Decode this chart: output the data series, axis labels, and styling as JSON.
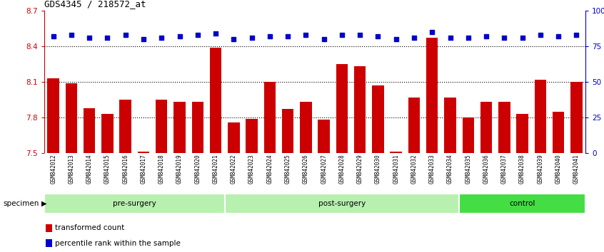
{
  "title": "GDS4345 / 218572_at",
  "samples": [
    "GSM842012",
    "GSM842013",
    "GSM842014",
    "GSM842015",
    "GSM842016",
    "GSM842017",
    "GSM842018",
    "GSM842019",
    "GSM842020",
    "GSM842021",
    "GSM842022",
    "GSM842023",
    "GSM842024",
    "GSM842025",
    "GSM842026",
    "GSM842027",
    "GSM842028",
    "GSM842029",
    "GSM842030",
    "GSM842031",
    "GSM842032",
    "GSM842033",
    "GSM842034",
    "GSM842035",
    "GSM842036",
    "GSM842037",
    "GSM842038",
    "GSM842039",
    "GSM842040",
    "GSM842041"
  ],
  "bar_values": [
    8.13,
    8.09,
    7.88,
    7.83,
    7.95,
    7.51,
    7.95,
    7.93,
    7.93,
    8.39,
    7.76,
    7.79,
    8.1,
    7.87,
    7.93,
    7.78,
    8.25,
    8.23,
    8.07,
    7.51,
    7.97,
    8.47,
    7.97,
    7.8,
    7.93,
    7.93,
    7.83,
    8.12,
    7.85,
    8.1
  ],
  "percentile_values": [
    82,
    83,
    81,
    81,
    83,
    80,
    81,
    82,
    83,
    84,
    80,
    81,
    82,
    82,
    83,
    80,
    83,
    83,
    82,
    80,
    81,
    85,
    81,
    81,
    82,
    81,
    81,
    83,
    82,
    83
  ],
  "bar_color": "#cc0000",
  "dot_color": "#0000cc",
  "bar_bottom": 7.5,
  "left_ylim": [
    7.5,
    8.7
  ],
  "right_ylim": [
    0,
    100
  ],
  "left_yticks": [
    7.5,
    7.8,
    8.1,
    8.4,
    8.7
  ],
  "right_yticks": [
    0,
    25,
    50,
    75,
    100
  ],
  "right_yticklabels": [
    "0",
    "25",
    "50",
    "75",
    "100%"
  ],
  "grid_lines": [
    7.8,
    8.1,
    8.4
  ],
  "groups": [
    {
      "label": "pre-surgery",
      "start": 0,
      "end": 9,
      "color": "#b8f0b0"
    },
    {
      "label": "post-surgery",
      "start": 10,
      "end": 22,
      "color": "#b8f0b0"
    },
    {
      "label": "control",
      "start": 23,
      "end": 29,
      "color": "#44dd44"
    }
  ],
  "xtick_bg": "#c8c8c8",
  "specimen_text": "specimen",
  "legend_items": [
    {
      "color": "#cc0000",
      "label": "transformed count"
    },
    {
      "color": "#0000cc",
      "label": "percentile rank within the sample"
    }
  ]
}
